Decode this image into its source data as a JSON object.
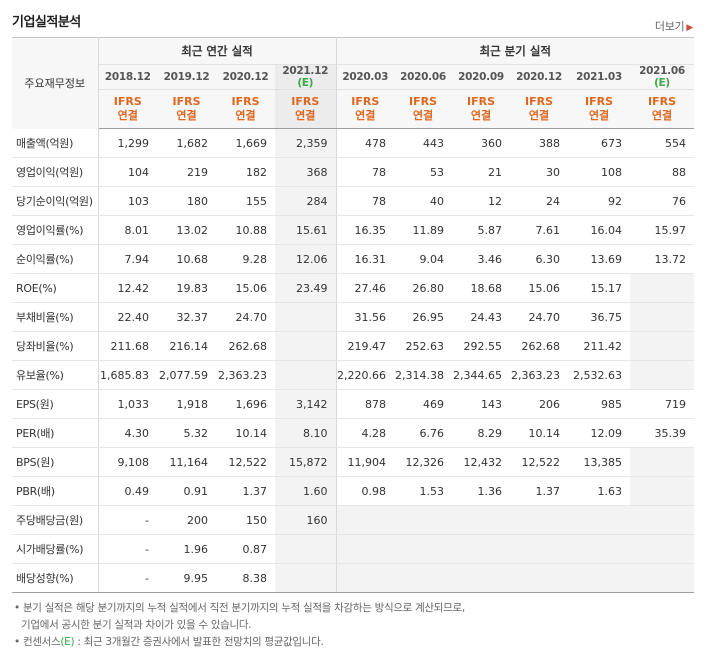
{
  "title": "기업실적분석",
  "more_label": "더보기",
  "row_header_label": "주요재무정보",
  "annual_group_label": "최근 연간 실적",
  "quarter_group_label": "최근 분기 실적",
  "estimate_mark": "(E)",
  "ifrs_label": "IFRS",
  "basis_label": "연결",
  "periods": [
    "2018.12",
    "2019.12",
    "2020.12",
    "2021.12",
    "2020.03",
    "2020.06",
    "2020.09",
    "2020.12",
    "2021.03",
    "2021.06"
  ],
  "rows": [
    {
      "label": "매출액(억원)",
      "values": [
        "1,299",
        "1,682",
        "1,669",
        "2,359",
        "478",
        "443",
        "360",
        "388",
        "673",
        "554"
      ]
    },
    {
      "label": "영업이익(억원)",
      "values": [
        "104",
        "219",
        "182",
        "368",
        "78",
        "53",
        "21",
        "30",
        "108",
        "88"
      ]
    },
    {
      "label": "당기순이익(억원)",
      "values": [
        "103",
        "180",
        "155",
        "284",
        "78",
        "40",
        "12",
        "24",
        "92",
        "76"
      ]
    },
    {
      "label": "영업이익률(%)",
      "values": [
        "8.01",
        "13.02",
        "10.88",
        "15.61",
        "16.35",
        "11.89",
        "5.87",
        "7.61",
        "16.04",
        "15.97"
      ]
    },
    {
      "label": "순이익률(%)",
      "values": [
        "7.94",
        "10.68",
        "9.28",
        "12.06",
        "16.31",
        "9.04",
        "3.46",
        "6.30",
        "13.69",
        "13.72"
      ]
    },
    {
      "label": "ROE(%)",
      "values": [
        "12.42",
        "19.83",
        "15.06",
        "23.49",
        "27.46",
        "26.80",
        "18.68",
        "15.06",
        "15.17",
        ""
      ]
    },
    {
      "label": "부채비율(%)",
      "values": [
        "22.40",
        "32.37",
        "24.70",
        "",
        "31.56",
        "26.95",
        "24.43",
        "24.70",
        "36.75",
        ""
      ]
    },
    {
      "label": "당좌비율(%)",
      "values": [
        "211.68",
        "216.14",
        "262.68",
        "",
        "219.47",
        "252.63",
        "292.55",
        "262.68",
        "211.42",
        ""
      ]
    },
    {
      "label": "유보율(%)",
      "values": [
        "1,685.83",
        "2,077.59",
        "2,363.23",
        "",
        "2,220.66",
        "2,314.38",
        "2,344.65",
        "2,363.23",
        "2,532.63",
        ""
      ]
    },
    {
      "label": "EPS(원)",
      "values": [
        "1,033",
        "1,918",
        "1,696",
        "3,142",
        "878",
        "469",
        "143",
        "206",
        "985",
        "719"
      ]
    },
    {
      "label": "PER(배)",
      "values": [
        "4.30",
        "5.32",
        "10.14",
        "8.10",
        "4.28",
        "6.76",
        "8.29",
        "10.14",
        "12.09",
        "35.39"
      ]
    },
    {
      "label": "BPS(원)",
      "values": [
        "9,108",
        "11,164",
        "12,522",
        "15,872",
        "11,904",
        "12,326",
        "12,432",
        "12,522",
        "13,385",
        ""
      ]
    },
    {
      "label": "PBR(배)",
      "values": [
        "0.49",
        "0.91",
        "1.37",
        "1.60",
        "0.98",
        "1.53",
        "1.36",
        "1.37",
        "1.63",
        ""
      ]
    },
    {
      "label": "주당배당금(원)",
      "values": [
        "-",
        "200",
        "150",
        "160",
        "",
        "",
        "",
        "",
        "",
        ""
      ]
    },
    {
      "label": "시가배당률(%)",
      "values": [
        "-",
        "1.96",
        "0.87",
        "",
        "",
        "",
        "",
        "",
        "",
        ""
      ]
    },
    {
      "label": "배당성향(%)",
      "values": [
        "-",
        "9.95",
        "8.38",
        "",
        "",
        "",
        "",
        "",
        "",
        ""
      ]
    }
  ],
  "notes": {
    "line1": "분기 실적은 해당 분기까지의 누적 실적에서 직전 분기까지의 누적 실적을 차감하는 방식으로 계산되므로,",
    "line2": "기업에서 공시한 분기 실적과 차이가 있을 수 있습니다.",
    "line3_pre": "컨센서스",
    "line3_mark": "(E)",
    "line3_post": ": 최근 3개월간 증권사에서 발표한 전망치의 평균값입니다."
  },
  "colors": {
    "ifrs": "#e0661e",
    "estimate": "#3da647"
  }
}
